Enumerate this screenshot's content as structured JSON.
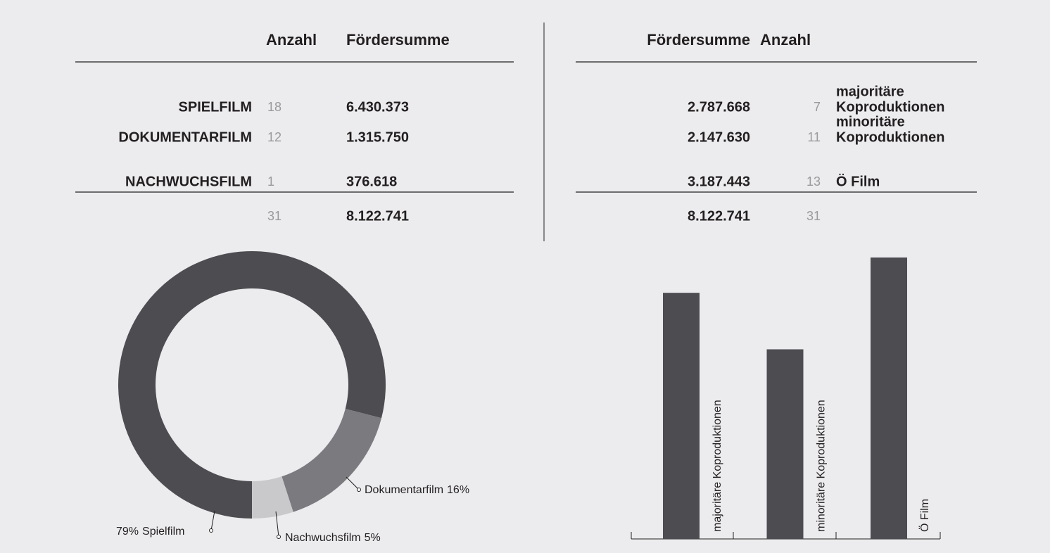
{
  "left_table": {
    "headers": [
      "Anzahl",
      "Fördersumme"
    ],
    "rows": [
      {
        "label": "SPIELFILM",
        "count": 18,
        "sum": "6.430.373"
      },
      {
        "label": "DOKUMENTARFILM",
        "count": 12,
        "sum": "1.315.750"
      },
      {
        "label": "NACHWUCHSFILM",
        "count": 1,
        "sum": "376.618"
      }
    ],
    "total": {
      "count": 31,
      "sum": "8.122.741"
    }
  },
  "right_table": {
    "headers": [
      "Fördersumme",
      "Anzahl"
    ],
    "rows": [
      {
        "sum": "2.787.668",
        "count": 7,
        "label": [
          "majoritäre",
          "Koproduktionen"
        ]
      },
      {
        "sum": "2.147.630",
        "count": 11,
        "label": [
          "minoritäre",
          "Koproduktionen"
        ]
      },
      {
        "sum": "3.187.443",
        "count": 13,
        "label": [
          "Ö Film"
        ]
      }
    ],
    "total": {
      "sum": "8.122.741",
      "count": 31
    }
  },
  "chart_data": [
    {
      "type": "pie",
      "donut": true,
      "categories": [
        "Spielfilm",
        "Dokumentarfilm",
        "Nachwuchsfilm"
      ],
      "values": [
        79,
        16,
        5
      ],
      "value_labels": [
        "79%",
        "16%",
        "5%"
      ],
      "colors": [
        "#4d4c51",
        "#7b7a7f",
        "#c9c9cb"
      ]
    },
    {
      "type": "bar",
      "categories": [
        "majoritäre Koproduktionen",
        "minoritäre Koproduktionen",
        "Ö Film"
      ],
      "values": [
        2787668,
        2147630,
        3187443
      ],
      "color": "#4d4c51"
    }
  ]
}
